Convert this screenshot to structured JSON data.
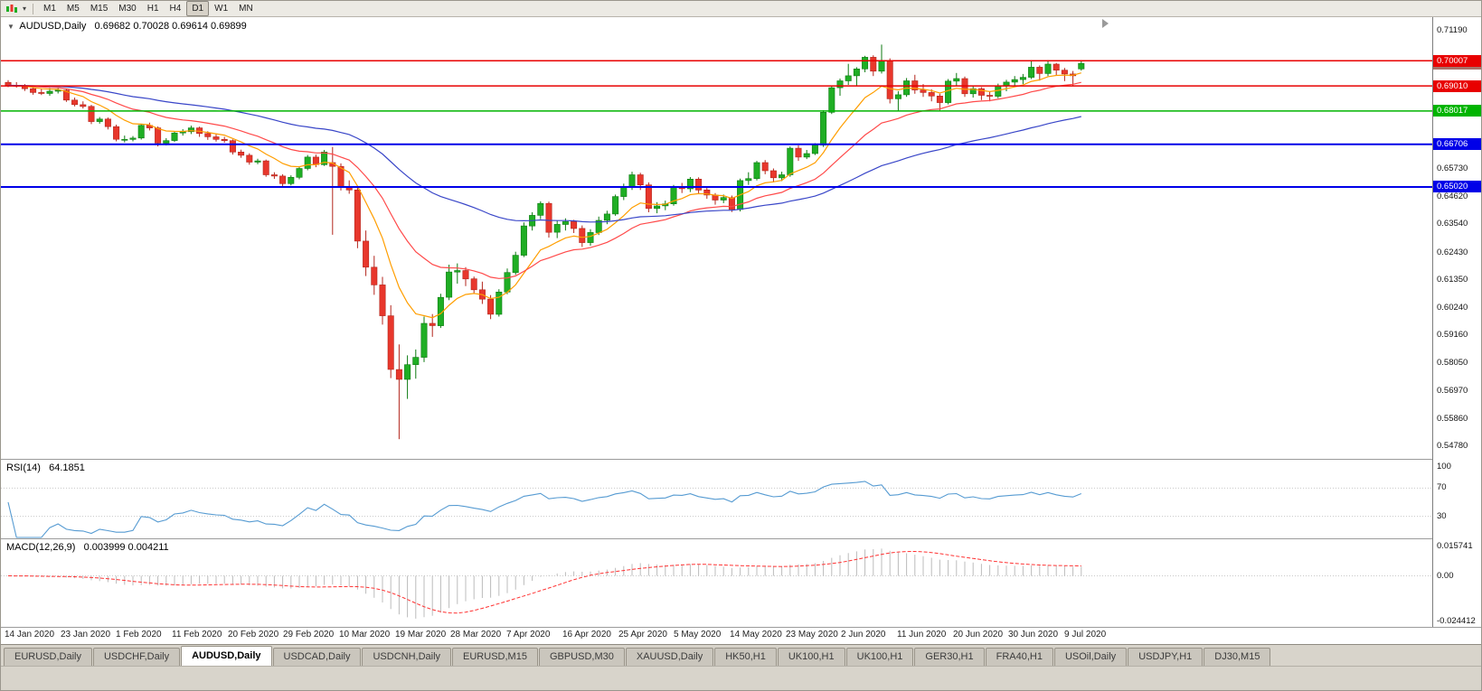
{
  "toolbar": {
    "timeframes": [
      "M1",
      "M5",
      "M15",
      "M30",
      "H1",
      "H4",
      "D1",
      "W1",
      "MN"
    ],
    "active_timeframe": "D1"
  },
  "chart_header": {
    "symbol": "AUDUSD,Daily",
    "ohlc": "0.69682 0.70028 0.69614 0.69899"
  },
  "rsi": {
    "label": "RSI(14)",
    "value": "64.1851",
    "levels": [
      100,
      70,
      30
    ],
    "color": "#569bd2"
  },
  "macd": {
    "label": "MACD(12,26,9)",
    "values": "0.003999 0.004211",
    "scale_max": "0.015741",
    "scale_zero": "0.00",
    "scale_min": "-0.024412",
    "range_max": 0.015741,
    "range_min": -0.024412
  },
  "tabs": [
    "EURUSD,Daily",
    "USDCHF,Daily",
    "AUDUSD,Daily",
    "USDCAD,Daily",
    "USDCNH,Daily",
    "EURUSD,M15",
    "GBPUSD,M30",
    "XAUUSD,Daily",
    "HK50,H1",
    "UK100,H1",
    "UK100,H1",
    "GER30,H1",
    "FRA40,H1",
    "USOil,Daily",
    "USDJPY,H1",
    "DJ30,M15"
  ],
  "active_tab_index": 2,
  "chart_data": {
    "type": "candlestick",
    "symbol": "AUDUSD",
    "timeframe": "Daily",
    "price_axis": {
      "max": 0.7119,
      "min": 0.5478,
      "ticks": [
        {
          "price": 0.7119,
          "label": "0.71190"
        },
        {
          "price": 0.6573,
          "label": "0.65730"
        },
        {
          "price": 0.6462,
          "label": "0.64620"
        },
        {
          "price": 0.6354,
          "label": "0.63540"
        },
        {
          "price": 0.6243,
          "label": "0.62430"
        },
        {
          "price": 0.6135,
          "label": "0.61350"
        },
        {
          "price": 0.6024,
          "label": "0.60240"
        },
        {
          "price": 0.5916,
          "label": "0.59160"
        },
        {
          "price": 0.5805,
          "label": "0.58050"
        },
        {
          "price": 0.5697,
          "label": "0.56970"
        },
        {
          "price": 0.5586,
          "label": "0.55860"
        },
        {
          "price": 0.5478,
          "label": "0.54780"
        }
      ]
    },
    "hlines": [
      {
        "price": 0.70007,
        "label": "0.70007",
        "color": "#e80000",
        "width": 1.5
      },
      {
        "price": 0.6901,
        "label": "0.69010",
        "color": "#e80000",
        "width": 1.5
      },
      {
        "price": 0.68017,
        "label": "0.68017",
        "color": "#00b400",
        "width": 1.5
      },
      {
        "price": 0.66706,
        "label": "0.66706",
        "color": "#0000e8",
        "width": 2
      },
      {
        "price": 0.6502,
        "label": "0.65020",
        "color": "#0000e8",
        "width": 2
      }
    ],
    "current_price": {
      "price": 0.69899,
      "label": "0.69899",
      "color": "#aa7068"
    },
    "colors": {
      "bull": "#1fae24",
      "bull_border": "#0d7a11",
      "bear": "#e8372c",
      "bear_border": "#b3251c",
      "macd_bar": "#bcbcbc",
      "macd_signal": "#ff3232"
    },
    "moving_averages": [
      {
        "name": "fast",
        "period": 9,
        "color": "#ff9e00"
      },
      {
        "name": "medium",
        "period": 21,
        "color": "#ff4a4a"
      },
      {
        "name": "slow",
        "period": 55,
        "color": "#3946c8"
      }
    ],
    "x_labels": [
      "14 Jan 2020",
      "23 Jan 2020",
      "1 Feb 2020",
      "11 Feb 2020",
      "20 Feb 2020",
      "29 Feb 2020",
      "10 Mar 2020",
      "19 Mar 2020",
      "28 Mar 2020",
      "7 Apr 2020",
      "16 Apr 2020",
      "25 Apr 2020",
      "5 May 2020",
      "14 May 2020",
      "23 May 2020",
      "2 Jun 2020",
      "11 Jun 2020",
      "20 Jun 2020",
      "30 Jun 2020",
      "9 Jul 2020"
    ],
    "candles": [
      [
        0.6915,
        0.6924,
        0.6896,
        0.6903
      ],
      [
        0.6903,
        0.6916,
        0.6894,
        0.69
      ],
      [
        0.69,
        0.6908,
        0.6881,
        0.689
      ],
      [
        0.689,
        0.6897,
        0.6866,
        0.6875
      ],
      [
        0.6875,
        0.689,
        0.6865,
        0.6871
      ],
      [
        0.6871,
        0.6892,
        0.6862,
        0.688
      ],
      [
        0.688,
        0.6895,
        0.6871,
        0.6884
      ],
      [
        0.6884,
        0.689,
        0.6838,
        0.6845
      ],
      [
        0.6845,
        0.6855,
        0.682,
        0.6827
      ],
      [
        0.6827,
        0.684,
        0.6812,
        0.682
      ],
      [
        0.682,
        0.6826,
        0.675,
        0.676
      ],
      [
        0.676,
        0.6778,
        0.6752,
        0.677
      ],
      [
        0.677,
        0.6776,
        0.6729,
        0.674
      ],
      [
        0.674,
        0.6748,
        0.6682,
        0.669
      ],
      [
        0.669,
        0.6705,
        0.6678,
        0.669
      ],
      [
        0.669,
        0.6703,
        0.6682,
        0.6695
      ],
      [
        0.6695,
        0.6752,
        0.6689,
        0.6745
      ],
      [
        0.6745,
        0.6756,
        0.6725,
        0.6735
      ],
      [
        0.6735,
        0.6741,
        0.6662,
        0.6675
      ],
      [
        0.6675,
        0.6695,
        0.6666,
        0.6685
      ],
      [
        0.6685,
        0.6722,
        0.668,
        0.6715
      ],
      [
        0.6715,
        0.673,
        0.6705,
        0.672
      ],
      [
        0.672,
        0.6744,
        0.6711,
        0.6735
      ],
      [
        0.6735,
        0.674,
        0.67,
        0.6713
      ],
      [
        0.6713,
        0.6722,
        0.6688,
        0.67
      ],
      [
        0.67,
        0.671,
        0.6681,
        0.669
      ],
      [
        0.669,
        0.67,
        0.6677,
        0.6685
      ],
      [
        0.6685,
        0.669,
        0.663,
        0.664
      ],
      [
        0.664,
        0.6649,
        0.6617,
        0.6627
      ],
      [
        0.6627,
        0.6635,
        0.659,
        0.66
      ],
      [
        0.66,
        0.6613,
        0.6592,
        0.6605
      ],
      [
        0.6605,
        0.661,
        0.6542,
        0.655
      ],
      [
        0.655,
        0.656,
        0.6534,
        0.6545
      ],
      [
        0.6545,
        0.6552,
        0.6505,
        0.6515
      ],
      [
        0.6515,
        0.6548,
        0.6508,
        0.654
      ],
      [
        0.654,
        0.6582,
        0.6532,
        0.6575
      ],
      [
        0.6575,
        0.6628,
        0.6568,
        0.662
      ],
      [
        0.662,
        0.663,
        0.658,
        0.659
      ],
      [
        0.659,
        0.6648,
        0.6585,
        0.664
      ],
      [
        0.6598,
        0.666,
        0.6313,
        0.6583
      ],
      [
        0.6583,
        0.6595,
        0.6488,
        0.65
      ],
      [
        0.65,
        0.6528,
        0.6475,
        0.649
      ],
      [
        0.649,
        0.65,
        0.626,
        0.6288
      ],
      [
        0.6288,
        0.633,
        0.615,
        0.6185
      ],
      [
        0.6185,
        0.623,
        0.6076,
        0.6115
      ],
      [
        0.6115,
        0.6147,
        0.5958,
        0.5993
      ],
      [
        0.5993,
        0.6035,
        0.5747,
        0.5781
      ],
      [
        0.5781,
        0.588,
        0.5506,
        0.5742
      ],
      [
        0.5742,
        0.5837,
        0.5665,
        0.58
      ],
      [
        0.58,
        0.586,
        0.5745,
        0.5829
      ],
      [
        0.5829,
        0.599,
        0.581,
        0.5963
      ],
      [
        0.5963,
        0.6,
        0.591,
        0.5954
      ],
      [
        0.5954,
        0.608,
        0.5945,
        0.6066
      ],
      [
        0.6066,
        0.6195,
        0.6055,
        0.6166
      ],
      [
        0.6166,
        0.62,
        0.612,
        0.6172
      ],
      [
        0.6172,
        0.6185,
        0.611,
        0.6139
      ],
      [
        0.6139,
        0.6148,
        0.608,
        0.6096
      ],
      [
        0.6096,
        0.6128,
        0.604,
        0.6059
      ],
      [
        0.6059,
        0.6075,
        0.598,
        0.5999
      ],
      [
        0.5999,
        0.6098,
        0.599,
        0.6087
      ],
      [
        0.6087,
        0.618,
        0.6078,
        0.6164
      ],
      [
        0.6164,
        0.6246,
        0.6155,
        0.6232
      ],
      [
        0.6232,
        0.6362,
        0.6225,
        0.6348
      ],
      [
        0.6348,
        0.6402,
        0.633,
        0.639
      ],
      [
        0.639,
        0.6445,
        0.6375,
        0.6437
      ],
      [
        0.6437,
        0.6444,
        0.6302,
        0.6323
      ],
      [
        0.6323,
        0.637,
        0.63,
        0.6354
      ],
      [
        0.6354,
        0.6378,
        0.633,
        0.6365
      ],
      [
        0.6365,
        0.6372,
        0.632,
        0.6338
      ],
      [
        0.6338,
        0.635,
        0.6265,
        0.6282
      ],
      [
        0.6282,
        0.6335,
        0.627,
        0.6322
      ],
      [
        0.6322,
        0.6385,
        0.6312,
        0.637
      ],
      [
        0.637,
        0.6408,
        0.6355,
        0.6395
      ],
      [
        0.6395,
        0.6472,
        0.6388,
        0.6464
      ],
      [
        0.6464,
        0.6515,
        0.645,
        0.65
      ],
      [
        0.65,
        0.6562,
        0.649,
        0.655
      ],
      [
        0.655,
        0.6558,
        0.649,
        0.651
      ],
      [
        0.651,
        0.652,
        0.6402,
        0.6417
      ],
      [
        0.6417,
        0.6442,
        0.6398,
        0.6427
      ],
      [
        0.6427,
        0.6448,
        0.641,
        0.6435
      ],
      [
        0.6435,
        0.651,
        0.6428,
        0.65
      ],
      [
        0.65,
        0.6518,
        0.6478,
        0.6495
      ],
      [
        0.6495,
        0.6541,
        0.6482,
        0.6533
      ],
      [
        0.6533,
        0.654,
        0.6475,
        0.649
      ],
      [
        0.649,
        0.6502,
        0.6455,
        0.647
      ],
      [
        0.647,
        0.6478,
        0.6432,
        0.645
      ],
      [
        0.645,
        0.6472,
        0.6438,
        0.646
      ],
      [
        0.646,
        0.6468,
        0.6403,
        0.6413
      ],
      [
        0.6413,
        0.6535,
        0.6405,
        0.6527
      ],
      [
        0.6527,
        0.656,
        0.651,
        0.6535
      ],
      [
        0.6535,
        0.6605,
        0.6528,
        0.6598
      ],
      [
        0.6598,
        0.6608,
        0.6552,
        0.6566
      ],
      [
        0.6566,
        0.6575,
        0.652,
        0.6538
      ],
      [
        0.6538,
        0.6562,
        0.6525,
        0.655
      ],
      [
        0.655,
        0.6662,
        0.6542,
        0.6655
      ],
      [
        0.6655,
        0.6666,
        0.6605,
        0.662
      ],
      [
        0.662,
        0.6648,
        0.6612,
        0.6634
      ],
      [
        0.6634,
        0.6675,
        0.6628,
        0.6667
      ],
      [
        0.6667,
        0.6805,
        0.666,
        0.6797
      ],
      [
        0.6797,
        0.69,
        0.679,
        0.6894
      ],
      [
        0.6894,
        0.693,
        0.6862,
        0.6921
      ],
      [
        0.6921,
        0.6988,
        0.6905,
        0.6941
      ],
      [
        0.6941,
        0.6975,
        0.69,
        0.6968
      ],
      [
        0.6968,
        0.702,
        0.6955,
        0.7014
      ],
      [
        0.7014,
        0.7022,
        0.694,
        0.6959
      ],
      [
        0.6959,
        0.7064,
        0.695,
        0.6999
      ],
      [
        0.6999,
        0.701,
        0.6832,
        0.685
      ],
      [
        0.685,
        0.688,
        0.68,
        0.6866
      ],
      [
        0.6866,
        0.6932,
        0.6858,
        0.6921
      ],
      [
        0.6921,
        0.6945,
        0.687,
        0.6885
      ],
      [
        0.6885,
        0.6908,
        0.6858,
        0.6875
      ],
      [
        0.6875,
        0.6888,
        0.684,
        0.6861
      ],
      [
        0.6861,
        0.687,
        0.68,
        0.6835
      ],
      [
        0.6835,
        0.6928,
        0.6828,
        0.692
      ],
      [
        0.692,
        0.6952,
        0.69,
        0.693
      ],
      [
        0.693,
        0.6938,
        0.6858,
        0.687
      ],
      [
        0.687,
        0.6902,
        0.6855,
        0.689
      ],
      [
        0.689,
        0.6896,
        0.6845,
        0.6864
      ],
      [
        0.6864,
        0.688,
        0.684,
        0.686
      ],
      [
        0.686,
        0.691,
        0.6852,
        0.6902
      ],
      [
        0.6902,
        0.6925,
        0.688,
        0.6916
      ],
      [
        0.6916,
        0.694,
        0.6902,
        0.6926
      ],
      [
        0.6926,
        0.6948,
        0.6908,
        0.6935
      ],
      [
        0.6935,
        0.6998,
        0.6928,
        0.6975
      ],
      [
        0.6975,
        0.6982,
        0.6922,
        0.695
      ],
      [
        0.695,
        0.7,
        0.694,
        0.6987
      ],
      [
        0.6987,
        0.6992,
        0.6942,
        0.6963
      ],
      [
        0.6963,
        0.6972,
        0.692,
        0.6948
      ],
      [
        0.6948,
        0.696,
        0.6902,
        0.6941
      ],
      [
        0.69682,
        0.70028,
        0.69614,
        0.69899
      ]
    ]
  }
}
